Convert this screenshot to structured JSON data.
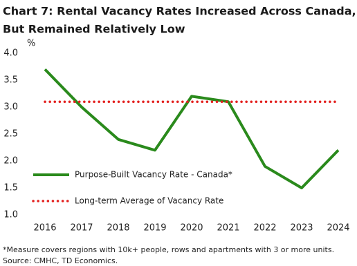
{
  "chart_data": {
    "type": "line",
    "title": [
      "Chart 7: Rental Vacancy Rates Increased Across Canada,",
      "But Remained Relatively Low"
    ],
    "y_label": "%",
    "categories": [
      "2016",
      "2017",
      "2018",
      "2019",
      "2020",
      "2021",
      "2022",
      "2023",
      "2024"
    ],
    "series": [
      {
        "name": "Purpose-Built Vacancy Rate - Canada*",
        "color": "#2a8a1c",
        "style": "solid",
        "values": [
          3.7,
          3.0,
          2.4,
          2.2,
          3.2,
          3.1,
          1.9,
          1.5,
          2.2
        ]
      },
      {
        "name": "Long-term Average of Vacancy Rate",
        "color": "#e3201e",
        "style": "dotted",
        "values": [
          3.1,
          3.1,
          3.1,
          3.1,
          3.1,
          3.1,
          3.1,
          3.1,
          3.1
        ]
      }
    ],
    "ylim": [
      1.0,
      4.0
    ],
    "yticks": [
      {
        "value": 1.0,
        "label": "1.0"
      },
      1.5,
      {
        "value": 2.0,
        "label": "2.0"
      },
      2.5,
      {
        "value": 3.0,
        "label": "3.0"
      },
      3.5,
      {
        "value": 4.0,
        "label": "4.0"
      }
    ],
    "legend": "lower-left",
    "notes": [
      "*Measure covers regions with 10k+ people, rows and apartments with 3 or more units.",
      "Source: CMHC,  TD Economics."
    ]
  }
}
